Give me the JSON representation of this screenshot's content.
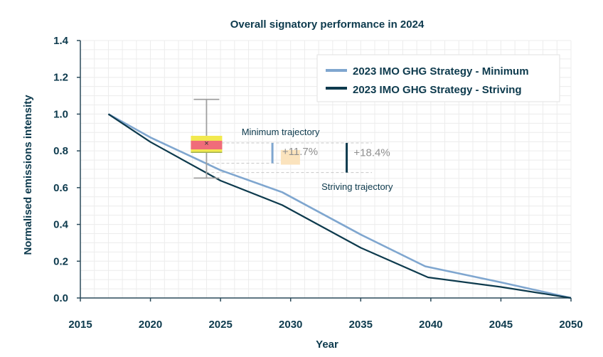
{
  "chart_data": {
    "type": "line",
    "title": "Overall signatory performance in 2024",
    "xlabel": "Year",
    "ylabel": "Normalised emissions intensity",
    "xlim": [
      2015,
      2050
    ],
    "ylim": [
      0.0,
      1.4
    ],
    "x_ticks": [
      2015,
      2020,
      2025,
      2030,
      2035,
      2040,
      2045,
      2050
    ],
    "y_ticks": [
      0.0,
      0.2,
      0.4,
      0.6,
      0.8,
      1.0,
      1.2,
      1.4
    ],
    "y_tick_labels": [
      "0.0",
      "0.2",
      "0.4",
      "0.6",
      "0.8",
      "1.0",
      "1.2",
      "1.4"
    ],
    "grid": true,
    "legend_position": "top-right",
    "series": [
      {
        "name": "2023 IMO GHG Strategy - Minimum",
        "color": "#7fa6cf",
        "x": [
          2017,
          2020,
          2025,
          2029.4,
          2035,
          2039.6,
          2045,
          2050
        ],
        "y": [
          1.0,
          0.873,
          0.695,
          0.575,
          0.345,
          0.172,
          0.085,
          0.0
        ]
      },
      {
        "name": "2023 IMO GHG Strategy - Striving",
        "color": "#0d3a4d",
        "x": [
          2017,
          2020,
          2025,
          2029.4,
          2035,
          2039.8,
          2045,
          2050
        ],
        "y": [
          1.0,
          0.848,
          0.638,
          0.505,
          0.273,
          0.112,
          0.06,
          0.0
        ]
      }
    ],
    "box_2024": {
      "x": 2024,
      "whisker_low": 0.652,
      "whisker_high": 1.08,
      "q1": 0.792,
      "q3": 0.882,
      "median": 0.84,
      "mean": 0.843,
      "outer_color": "#f2e94e",
      "inner_color": "#f06c7a",
      "whisker_color": "#a0a0a0",
      "mean_marker": "×"
    },
    "annotations": {
      "minimum_label": "Minimum trajectory",
      "striving_label": "Striving trajectory",
      "minimum_gap": "+11.7%",
      "striving_gap": "+18.4%",
      "minimum_bracket": [
        0.733,
        0.843
      ],
      "striving_bracket": [
        0.682,
        0.843
      ],
      "reference_value": 0.843,
      "minimum_ref_value": 0.733,
      "striving_ref_value": 0.682,
      "minimum_bracket_x": 2028.7,
      "striving_bracket_x": 2034.0,
      "minimum_label_x": 2026.5,
      "striving_label_x": 2032.2,
      "minimum_gap_x": 2029.4,
      "striving_gap_x": 2034.5,
      "highlight_color": "#fbe3bd"
    }
  }
}
